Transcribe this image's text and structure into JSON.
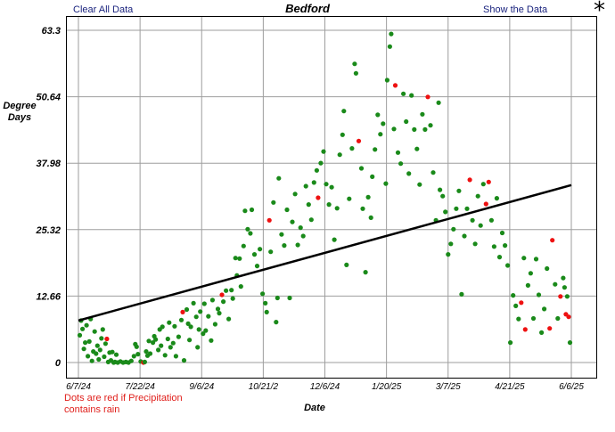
{
  "header": {
    "clear_label": "Clear All Data",
    "show_label": "Show the Data",
    "menu_glyph": "*"
  },
  "legend_note": "Dots are red if Precipitation contains rain",
  "colors": {
    "dot": "#1a8a1a",
    "rain_dot": "#ee1111",
    "trend": "#000000",
    "grid": "#9e9e9e"
  },
  "chart_data": {
    "type": "scatter",
    "title": "Bedford",
    "xlabel": "Date",
    "ylabel": "Degree Days",
    "x_ticks": [
      "6/7/24",
      "7/22/24",
      "9/6/24",
      "10/21/2",
      "12/6/24",
      "1/20/25",
      "3/7/25",
      "4/21/25",
      "6/6/25"
    ],
    "y_ticks": [
      0,
      12.66,
      25.32,
      37.98,
      50.64,
      63.3
    ],
    "xlim": [
      "2024-06-07",
      "2025-06-06"
    ],
    "ylim": [
      -3,
      63.3
    ],
    "grid": true,
    "trendline": {
      "from": [
        "2024-06-07",
        8.0
      ],
      "to": [
        "2025-06-06",
        33.8
      ]
    },
    "points": [
      [
        "2024-06-08",
        5.2,
        0
      ],
      [
        "2024-06-09",
        8.0,
        0
      ],
      [
        "2024-06-10",
        6.4,
        0
      ],
      [
        "2024-06-11",
        2.6,
        0
      ],
      [
        "2024-06-12",
        3.8,
        0
      ],
      [
        "2024-06-13",
        7.1,
        0
      ],
      [
        "2024-06-14",
        1.2,
        0
      ],
      [
        "2024-06-15",
        4.0,
        0
      ],
      [
        "2024-06-16",
        8.3,
        0
      ],
      [
        "2024-06-17",
        0.3,
        0
      ],
      [
        "2024-06-18",
        2.1,
        0
      ],
      [
        "2024-06-19",
        5.9,
        0
      ],
      [
        "2024-06-20",
        1.7,
        0
      ],
      [
        "2024-06-21",
        3.2,
        0
      ],
      [
        "2024-06-22",
        0.6,
        0
      ],
      [
        "2024-06-23",
        2.4,
        0
      ],
      [
        "2024-06-24",
        4.6,
        0
      ],
      [
        "2024-06-25",
        6.3,
        0
      ],
      [
        "2024-06-26",
        1.1,
        0
      ],
      [
        "2024-06-27",
        3.6,
        0
      ],
      [
        "2024-06-28",
        4.5,
        1
      ],
      [
        "2024-06-29",
        0.1,
        0
      ],
      [
        "2024-06-30",
        1.9,
        0
      ],
      [
        "2024-07-01",
        0.4,
        0
      ],
      [
        "2024-07-02",
        2.0,
        0
      ],
      [
        "2024-07-03",
        0.0,
        0
      ],
      [
        "2024-07-04",
        0.1,
        0
      ],
      [
        "2024-07-05",
        1.5,
        0
      ],
      [
        "2024-07-06",
        0.0,
        0
      ],
      [
        "2024-07-08",
        0.2,
        0
      ],
      [
        "2024-07-10",
        0.0,
        0
      ],
      [
        "2024-07-12",
        0.1,
        0
      ],
      [
        "2024-07-14",
        0.0,
        0
      ],
      [
        "2024-07-16",
        0.3,
        0
      ],
      [
        "2024-07-18",
        1.2,
        0
      ],
      [
        "2024-07-19",
        3.5,
        0
      ],
      [
        "2024-07-20",
        3.0,
        0
      ],
      [
        "2024-07-21",
        1.6,
        0
      ],
      [
        "2024-07-23",
        0.2,
        0
      ],
      [
        "2024-07-25",
        0.0,
        1
      ],
      [
        "2024-07-26",
        0.1,
        0
      ],
      [
        "2024-07-27",
        2.1,
        0
      ],
      [
        "2024-07-28",
        1.3,
        0
      ],
      [
        "2024-07-29",
        4.1,
        0
      ],
      [
        "2024-07-30",
        1.7,
        0
      ],
      [
        "2024-08-01",
        3.8,
        0
      ],
      [
        "2024-08-02",
        5.0,
        0
      ],
      [
        "2024-08-03",
        4.4,
        0
      ],
      [
        "2024-08-05",
        2.4,
        0
      ],
      [
        "2024-08-06",
        6.3,
        0
      ],
      [
        "2024-08-07",
        3.2,
        0
      ],
      [
        "2024-08-08",
        6.8,
        0
      ],
      [
        "2024-08-10",
        1.4,
        0
      ],
      [
        "2024-08-12",
        4.5,
        0
      ],
      [
        "2024-08-13",
        7.6,
        0
      ],
      [
        "2024-08-14",
        2.9,
        0
      ],
      [
        "2024-08-16",
        3.7,
        0
      ],
      [
        "2024-08-17",
        6.9,
        0
      ],
      [
        "2024-08-18",
        1.2,
        0
      ],
      [
        "2024-08-20",
        4.9,
        0
      ],
      [
        "2024-08-22",
        8.1,
        0
      ],
      [
        "2024-08-23",
        9.6,
        1
      ],
      [
        "2024-08-24",
        0.4,
        0
      ],
      [
        "2024-08-26",
        10.1,
        0
      ],
      [
        "2024-08-27",
        7.4,
        0
      ],
      [
        "2024-08-28",
        4.3,
        0
      ],
      [
        "2024-08-29",
        6.8,
        0
      ],
      [
        "2024-08-31",
        11.3,
        0
      ],
      [
        "2024-09-02",
        8.7,
        0
      ],
      [
        "2024-09-03",
        2.9,
        0
      ],
      [
        "2024-09-04",
        6.3,
        0
      ],
      [
        "2024-09-05",
        9.7,
        0
      ],
      [
        "2024-09-07",
        5.5,
        0
      ],
      [
        "2024-09-08",
        11.2,
        0
      ],
      [
        "2024-09-09",
        6.1,
        0
      ],
      [
        "2024-09-11",
        8.8,
        0
      ],
      [
        "2024-09-13",
        4.2,
        0
      ],
      [
        "2024-09-14",
        11.9,
        0
      ],
      [
        "2024-09-16",
        7.3,
        0
      ],
      [
        "2024-09-18",
        10.2,
        0
      ],
      [
        "2024-09-19",
        9.4,
        0
      ],
      [
        "2024-09-21",
        12.9,
        1
      ],
      [
        "2024-09-22",
        11.6,
        0
      ],
      [
        "2024-09-24",
        13.7,
        0
      ],
      [
        "2024-09-26",
        8.3,
        0
      ],
      [
        "2024-09-28",
        13.8,
        0
      ],
      [
        "2024-09-29",
        12.2,
        0
      ],
      [
        "2024-10-01",
        19.9,
        0
      ],
      [
        "2024-10-02",
        16.6,
        0
      ],
      [
        "2024-10-04",
        19.8,
        0
      ],
      [
        "2024-10-05",
        14.5,
        0
      ],
      [
        "2024-10-07",
        22.2,
        0
      ],
      [
        "2024-10-08",
        28.9,
        0
      ],
      [
        "2024-10-10",
        25.4,
        0
      ],
      [
        "2024-10-12",
        24.6,
        0
      ],
      [
        "2024-10-13",
        29.1,
        0
      ],
      [
        "2024-10-15",
        20.6,
        0
      ],
      [
        "2024-10-17",
        18.4,
        0
      ],
      [
        "2024-10-19",
        21.6,
        0
      ],
      [
        "2024-10-21",
        13.1,
        0
      ],
      [
        "2024-10-23",
        11.3,
        0
      ],
      [
        "2024-10-24",
        9.6,
        0
      ],
      [
        "2024-10-26",
        27.1,
        1
      ],
      [
        "2024-10-27",
        21.1,
        0
      ],
      [
        "2024-10-29",
        30.5,
        0
      ],
      [
        "2024-10-31",
        7.7,
        0
      ],
      [
        "2024-11-01",
        12.3,
        0
      ],
      [
        "2024-11-02",
        35.1,
        0
      ],
      [
        "2024-11-04",
        24.4,
        0
      ],
      [
        "2024-11-06",
        22.3,
        0
      ],
      [
        "2024-11-08",
        29.1,
        0
      ],
      [
        "2024-11-10",
        12.3,
        0
      ],
      [
        "2024-11-12",
        26.8,
        0
      ],
      [
        "2024-11-14",
        32.1,
        0
      ],
      [
        "2024-11-16",
        22.4,
        0
      ],
      [
        "2024-11-18",
        25.7,
        0
      ],
      [
        "2024-11-20",
        24.1,
        0
      ],
      [
        "2024-11-22",
        33.6,
        0
      ],
      [
        "2024-11-24",
        30.1,
        0
      ],
      [
        "2024-11-26",
        27.2,
        0
      ],
      [
        "2024-11-28",
        34.3,
        0
      ],
      [
        "2024-11-30",
        36.6,
        0
      ],
      [
        "2024-12-01",
        31.4,
        1
      ],
      [
        "2024-12-03",
        38.0,
        0
      ],
      [
        "2024-12-05",
        40.2,
        0
      ],
      [
        "2024-12-07",
        34.0,
        0
      ],
      [
        "2024-12-09",
        30.1,
        0
      ],
      [
        "2024-12-11",
        33.4,
        0
      ],
      [
        "2024-12-13",
        23.4,
        0
      ],
      [
        "2024-12-15",
        29.4,
        0
      ],
      [
        "2024-12-17",
        39.6,
        0
      ],
      [
        "2024-12-19",
        43.4,
        0
      ],
      [
        "2024-12-20",
        47.9,
        0
      ],
      [
        "2024-12-22",
        18.6,
        0
      ],
      [
        "2024-12-24",
        31.2,
        0
      ],
      [
        "2024-12-26",
        40.8,
        0
      ],
      [
        "2024-12-28",
        56.9,
        0
      ],
      [
        "2024-12-29",
        55.1,
        0
      ],
      [
        "2024-12-31",
        42.2,
        1
      ],
      [
        "2025-01-02",
        37.0,
        0
      ],
      [
        "2025-01-03",
        29.3,
        0
      ],
      [
        "2025-01-05",
        17.2,
        0
      ],
      [
        "2025-01-07",
        31.5,
        0
      ],
      [
        "2025-01-09",
        27.6,
        0
      ],
      [
        "2025-01-10",
        35.4,
        0
      ],
      [
        "2025-01-12",
        40.6,
        0
      ],
      [
        "2025-01-14",
        47.2,
        0
      ],
      [
        "2025-01-16",
        43.5,
        0
      ],
      [
        "2025-01-18",
        45.5,
        0
      ],
      [
        "2025-01-20",
        34.1,
        0
      ],
      [
        "2025-01-21",
        53.8,
        0
      ],
      [
        "2025-01-23",
        60.2,
        0
      ],
      [
        "2025-01-24",
        62.6,
        0
      ],
      [
        "2025-01-26",
        44.5,
        0
      ],
      [
        "2025-01-27",
        52.8,
        1
      ],
      [
        "2025-01-29",
        40.0,
        0
      ],
      [
        "2025-01-31",
        37.9,
        0
      ],
      [
        "2025-02-02",
        51.2,
        0
      ],
      [
        "2025-02-04",
        45.9,
        0
      ],
      [
        "2025-02-06",
        36.0,
        0
      ],
      [
        "2025-02-08",
        50.9,
        0
      ],
      [
        "2025-02-10",
        44.4,
        0
      ],
      [
        "2025-02-12",
        40.7,
        0
      ],
      [
        "2025-02-14",
        33.9,
        0
      ],
      [
        "2025-02-16",
        47.3,
        0
      ],
      [
        "2025-02-18",
        44.4,
        0
      ],
      [
        "2025-02-20",
        50.6,
        1
      ],
      [
        "2025-02-22",
        45.2,
        0
      ],
      [
        "2025-02-24",
        36.2,
        0
      ],
      [
        "2025-02-26",
        27.1,
        0
      ],
      [
        "2025-02-28",
        49.5,
        0
      ],
      [
        "2025-03-01",
        32.9,
        0
      ],
      [
        "2025-03-03",
        31.7,
        0
      ],
      [
        "2025-03-05",
        28.7,
        0
      ],
      [
        "2025-03-07",
        20.6,
        0
      ],
      [
        "2025-03-09",
        22.6,
        0
      ],
      [
        "2025-03-11",
        25.4,
        0
      ],
      [
        "2025-03-13",
        29.3,
        0
      ],
      [
        "2025-03-15",
        32.7,
        0
      ],
      [
        "2025-03-17",
        13.0,
        0
      ],
      [
        "2025-03-19",
        24.1,
        0
      ],
      [
        "2025-03-21",
        29.3,
        0
      ],
      [
        "2025-03-23",
        34.8,
        1
      ],
      [
        "2025-03-25",
        27.1,
        0
      ],
      [
        "2025-03-27",
        22.6,
        0
      ],
      [
        "2025-03-29",
        31.7,
        0
      ],
      [
        "2025-03-31",
        26.1,
        0
      ],
      [
        "2025-04-02",
        34.0,
        0
      ],
      [
        "2025-04-04",
        30.2,
        1
      ],
      [
        "2025-04-06",
        34.4,
        1
      ],
      [
        "2025-04-08",
        27.1,
        0
      ],
      [
        "2025-04-10",
        22.1,
        0
      ],
      [
        "2025-04-12",
        31.3,
        0
      ],
      [
        "2025-04-14",
        20.1,
        0
      ],
      [
        "2025-04-16",
        24.7,
        0
      ],
      [
        "2025-04-18",
        22.3,
        0
      ],
      [
        "2025-04-20",
        18.5,
        0
      ],
      [
        "2025-04-22",
        3.8,
        0
      ],
      [
        "2025-04-24",
        12.8,
        0
      ],
      [
        "2025-04-26",
        10.8,
        0
      ],
      [
        "2025-04-28",
        8.3,
        0
      ],
      [
        "2025-04-30",
        11.4,
        1
      ],
      [
        "2025-05-02",
        19.9,
        0
      ],
      [
        "2025-05-03",
        6.3,
        1
      ],
      [
        "2025-05-05",
        14.7,
        0
      ],
      [
        "2025-05-07",
        17.0,
        0
      ],
      [
        "2025-05-09",
        8.4,
        0
      ],
      [
        "2025-05-11",
        19.7,
        0
      ],
      [
        "2025-05-13",
        12.9,
        0
      ],
      [
        "2025-05-15",
        5.7,
        0
      ],
      [
        "2025-05-17",
        10.2,
        0
      ],
      [
        "2025-05-19",
        17.9,
        0
      ],
      [
        "2025-05-21",
        6.5,
        1
      ],
      [
        "2025-05-23",
        23.3,
        1
      ],
      [
        "2025-05-25",
        14.9,
        0
      ],
      [
        "2025-05-27",
        8.4,
        0
      ],
      [
        "2025-05-29",
        12.6,
        1
      ],
      [
        "2025-05-31",
        16.1,
        0
      ],
      [
        "2025-06-01",
        14.3,
        0
      ],
      [
        "2025-06-02",
        9.2,
        1
      ],
      [
        "2025-06-03",
        12.6,
        0
      ],
      [
        "2025-06-04",
        8.7,
        1
      ],
      [
        "2025-06-05",
        3.8,
        0
      ]
    ]
  }
}
